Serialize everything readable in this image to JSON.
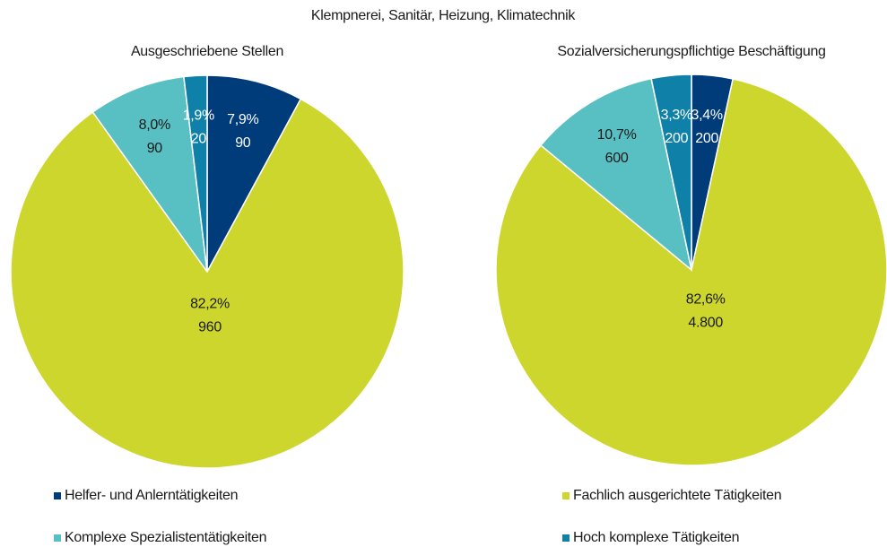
{
  "title": "Klempnerei, Sanitär, Heizung, Klimatechnik",
  "chart_data": [
    {
      "type": "pie",
      "title": "Ausgeschriebene Stellen",
      "categories": [
        "Helfer- und Anlerntätigkeiten",
        "Fachlich ausgerichtete Tätigkeiten",
        "Komplexe Spezialistentätigkeiten",
        "Hoch komplexe Tätigkeiten"
      ],
      "values": [
        7.9,
        82.2,
        8.0,
        1.9
      ],
      "value_labels": [
        "7,9%",
        "82,2%",
        "8,0%",
        "1,9%"
      ],
      "counts": [
        90,
        960,
        90,
        20
      ],
      "colors": [
        "#003b7a",
        "#cdd62d",
        "#58bfc2",
        "#0f80a8"
      ]
    },
    {
      "type": "pie",
      "title": "Sozialversicherungspflichtige Beschäftigung",
      "categories": [
        "Helfer- und Anlerntätigkeiten",
        "Fachlich ausgerichtete Tätigkeiten",
        "Komplexe Spezialistentätigkeiten",
        "Hoch komplexe Tätigkeiten"
      ],
      "values": [
        3.4,
        82.6,
        10.7,
        3.3
      ],
      "value_labels": [
        "3,4%",
        "82,6%",
        "10,7%",
        "3,3%"
      ],
      "counts": [
        200,
        4800,
        600,
        200
      ],
      "count_labels": [
        "200",
        "4.800",
        "600",
        "200"
      ],
      "colors": [
        "#003b7a",
        "#cdd62d",
        "#58bfc2",
        "#0f80a8"
      ]
    }
  ]
}
